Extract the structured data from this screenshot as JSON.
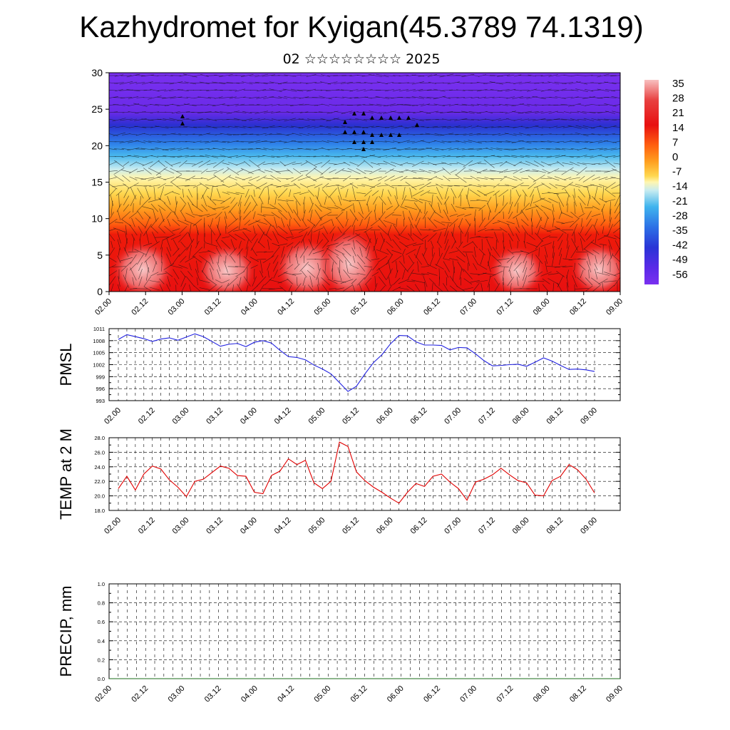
{
  "page": {
    "title": "Kazhydromet for Kyigan(45.3789 74.1319)",
    "subtitle": "02 ☆☆☆☆☆☆☆☆ 2025"
  },
  "colors": {
    "pmsl_line": "#2020e0",
    "temp_line": "#e00000",
    "precip_line": "#1a6b1a",
    "colorbar": [
      "#7a2ef0",
      "#5a2ae8",
      "#3848e0",
      "#2c78e8",
      "#38a8ec",
      "#80d4ee",
      "#c8ecf0",
      "#fff4a0",
      "#ffd040",
      "#ffa020",
      "#ff6010",
      "#f02010",
      "#d80808",
      "#e83030",
      "#f07070",
      "#f8b8b8"
    ]
  },
  "chart_data": [
    {
      "type": "heatmap",
      "name": "cross-section",
      "description_text": "",
      "ylim": [
        0,
        30
      ],
      "yticks": [
        0,
        5,
        10,
        15,
        20,
        25,
        30
      ],
      "xticks": [
        "02.00",
        "02.12",
        "03.00",
        "03.12",
        "04.00",
        "04.12",
        "05.00",
        "05.12",
        "06.00",
        "06.12",
        "07.00",
        "07.12",
        "08.00",
        "08.12",
        "09.00"
      ],
      "colorbar_labels": [
        "35",
        "28",
        "21",
        "14",
        "7",
        "0",
        "-7",
        "-14",
        "-21",
        "-28",
        "-35",
        "-42",
        "-49",
        "-56"
      ],
      "wind_vectors": true
    },
    {
      "type": "line",
      "ylabel": "PMSL",
      "ylim": [
        993,
        1011
      ],
      "yticks": [
        "1011",
        "1008",
        "1005",
        "1002",
        "999",
        "996",
        "993"
      ],
      "xticks": [
        "02.00",
        "02.12",
        "03.00",
        "03.12",
        "04.00",
        "04.12",
        "05.00",
        "05.12",
        "06.00",
        "06.12",
        "07.00",
        "07.12",
        "08.00",
        "08.12",
        "09.00"
      ],
      "x_hours": [
        0,
        3,
        6,
        9,
        12,
        15,
        18,
        21,
        24,
        27,
        30,
        33,
        36,
        39,
        42,
        45,
        48,
        51,
        54,
        57,
        60,
        63,
        66,
        69,
        72,
        75,
        78,
        81,
        84,
        87,
        90,
        93,
        96,
        99,
        102,
        105,
        108,
        111,
        114,
        117,
        120,
        123,
        126,
        129,
        132,
        135,
        138,
        141,
        144,
        147,
        150,
        153,
        156,
        159,
        162,
        165,
        168
      ],
      "values": [
        1008.3,
        1009.5,
        1009.0,
        1008.5,
        1007.8,
        1008.4,
        1008.7,
        1008.1,
        1008.9,
        1009.7,
        1009.0,
        1007.8,
        1006.6,
        1007.1,
        1007.3,
        1006.5,
        1007.6,
        1008.0,
        1007.4,
        1005.6,
        1004.0,
        1003.8,
        1003.2,
        1001.9,
        1000.9,
        999.7,
        997.5,
        995.3,
        996.6,
        999.7,
        1002.5,
        1004.5,
        1007.2,
        1009.3,
        1009.2,
        1007.7,
        1006.9,
        1006.9,
        1006.8,
        1005.7,
        1006.3,
        1006.2,
        1004.7,
        1003.0,
        1001.7,
        1001.8,
        1002.0,
        1002.1,
        1001.6,
        1002.6,
        1003.7,
        1002.9,
        1001.8,
        1000.8,
        1000.9,
        1000.7,
        1000.3
      ]
    },
    {
      "type": "line",
      "ylabel": "TEMP at 2 M",
      "ylim": [
        18,
        28
      ],
      "yticks": [
        "28.0",
        "26.0",
        "24.0",
        "22.0",
        "20.0",
        "18.0"
      ],
      "xticks": [
        "02.00",
        "02.12",
        "03.00",
        "03.12",
        "04.00",
        "04.12",
        "05.00",
        "05.12",
        "06.00",
        "06.12",
        "07.00",
        "07.12",
        "08.00",
        "08.12",
        "09.00"
      ],
      "x_hours": [
        0,
        3,
        6,
        9,
        12,
        15,
        18,
        21,
        24,
        27,
        30,
        33,
        36,
        39,
        42,
        45,
        48,
        51,
        54,
        57,
        60,
        63,
        66,
        69,
        72,
        75,
        78,
        81,
        84,
        87,
        90,
        93,
        96,
        99,
        102,
        105,
        108,
        111,
        114,
        117,
        120,
        123,
        126,
        129,
        132,
        135,
        138,
        141,
        144,
        147,
        150,
        153,
        156,
        159,
        162,
        165,
        168
      ],
      "values": [
        21.0,
        22.7,
        20.8,
        23.0,
        24.1,
        23.7,
        22.2,
        21.2,
        19.9,
        22.0,
        22.3,
        23.2,
        24.1,
        23.8,
        22.8,
        22.7,
        20.5,
        20.3,
        22.8,
        23.4,
        25.1,
        24.3,
        24.9,
        21.8,
        21.0,
        22.0,
        27.4,
        26.8,
        23.3,
        22.1,
        21.2,
        20.5,
        19.7,
        19.0,
        20.5,
        21.7,
        21.3,
        22.7,
        23.0,
        21.9,
        21.0,
        19.4,
        21.9,
        22.3,
        22.9,
        23.8,
        22.9,
        22.1,
        21.8,
        20.1,
        20.0,
        22.1,
        22.7,
        24.3,
        23.6,
        22.3,
        20.4
      ]
    },
    {
      "type": "line",
      "ylabel": "PRECIP, mm",
      "ylim": [
        0.0,
        1.0
      ],
      "yticks": [
        "1.0",
        "0.8",
        "0.6",
        "0.4",
        "0.2",
        "0.0"
      ],
      "xticks": [
        "02.00",
        "02.12",
        "03.00",
        "03.12",
        "04.00",
        "04.12",
        "05.00",
        "05.12",
        "06.00",
        "06.12",
        "07.00",
        "07.12",
        "08.00",
        "08.12",
        "09.00"
      ],
      "values": [
        0,
        0,
        0,
        0,
        0,
        0,
        0,
        0,
        0,
        0,
        0,
        0,
        0,
        0,
        0,
        0,
        0,
        0,
        0,
        0,
        0,
        0,
        0,
        0,
        0,
        0,
        0,
        0,
        0,
        0,
        0,
        0,
        0,
        0,
        0,
        0,
        0,
        0,
        0,
        0,
        0,
        0,
        0,
        0,
        0,
        0,
        0,
        0,
        0,
        0,
        0,
        0,
        0,
        0,
        0,
        0,
        0
      ]
    }
  ]
}
